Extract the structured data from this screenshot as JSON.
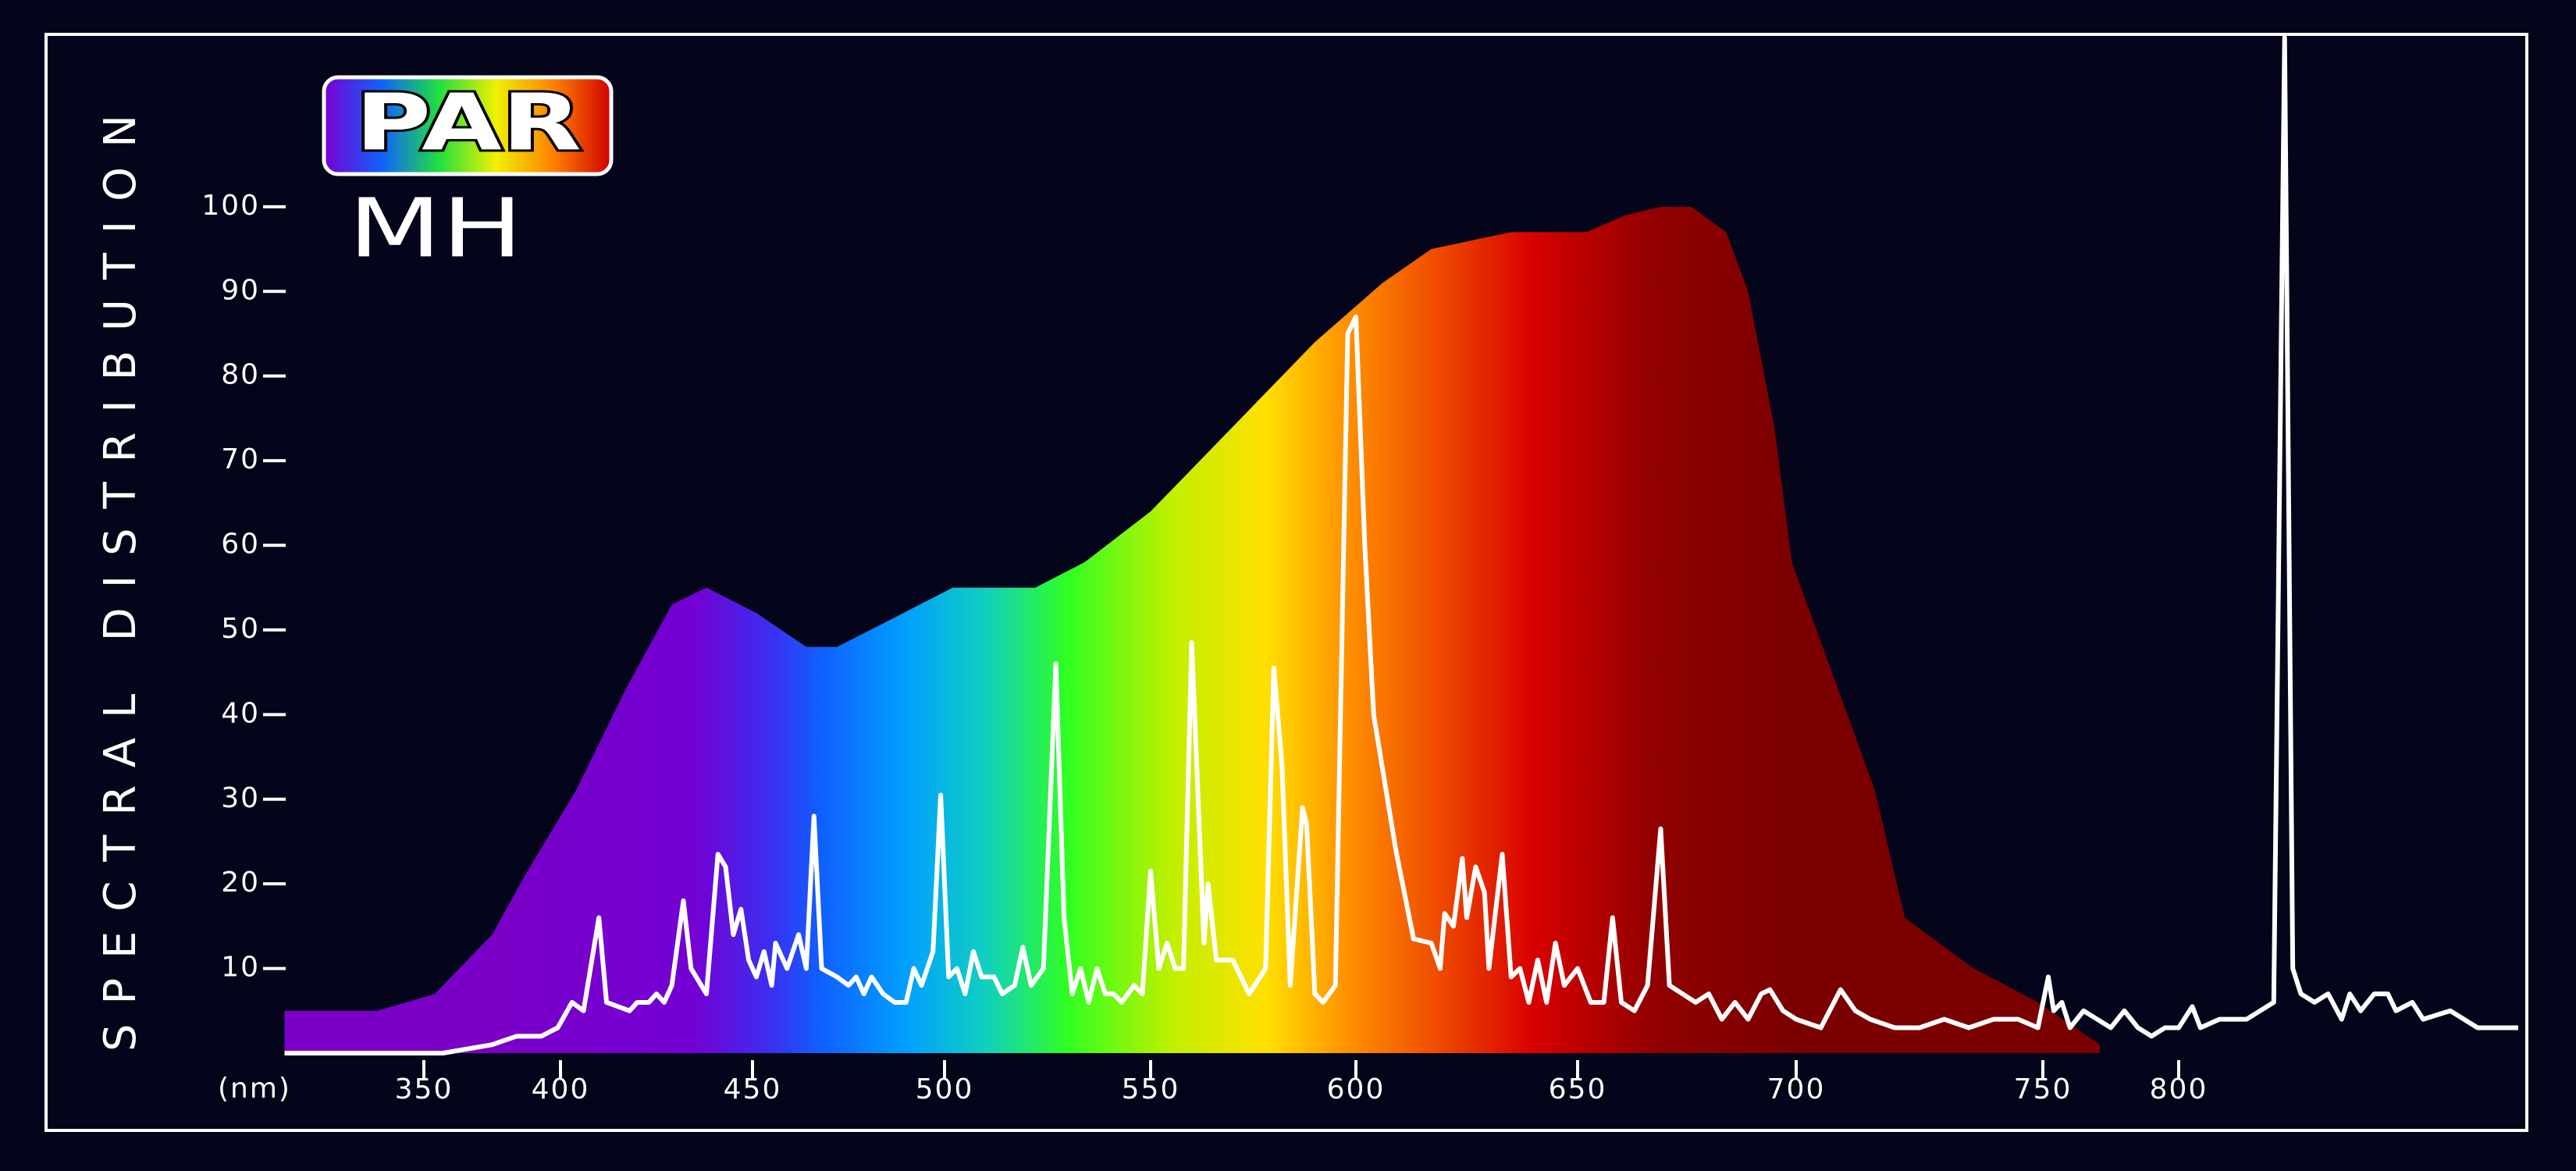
{
  "chart_data": {
    "type": "line",
    "badge": "PAR",
    "title": "MH",
    "ylabel": "SPECTRAL DISTRIBUTION",
    "xlabel": "(nm)",
    "xlim": [
      299,
      925
    ],
    "xticks": [
      350,
      400,
      450,
      500,
      550,
      600,
      650,
      700,
      750,
      800
    ],
    "ylim": [
      0,
      120
    ],
    "yticks": [
      10,
      20,
      30,
      40,
      50,
      60,
      70,
      80,
      90,
      100
    ],
    "series": [
      {
        "type": "area",
        "gradient": [
          {
            "x": 380,
            "color": "#7a00c8"
          },
          {
            "x": 435,
            "color": "#7400d4"
          },
          {
            "x": 455,
            "color": "#3a30f0"
          },
          {
            "x": 468,
            "color": "#1060ff"
          },
          {
            "x": 490,
            "color": "#00a0ff"
          },
          {
            "x": 510,
            "color": "#10d0c0"
          },
          {
            "x": 530,
            "color": "#30ff20"
          },
          {
            "x": 555,
            "color": "#c0f000"
          },
          {
            "x": 578,
            "color": "#ffe000"
          },
          {
            "x": 598,
            "color": "#ff9000"
          },
          {
            "x": 617,
            "color": "#f05000"
          },
          {
            "x": 640,
            "color": "#d80000"
          },
          {
            "x": 668,
            "color": "#900000"
          },
          {
            "x": 700,
            "color": "#7a0000"
          }
        ],
        "x": [
          299,
          333,
          354,
          375,
          387,
          404,
          417,
          429,
          438,
          451,
          464,
          472,
          485,
          502,
          510,
          522,
          534,
          550,
          570,
          590,
          606,
          617,
          635,
          652,
          661,
          669,
          676,
          684,
          689,
          695,
          699,
          706,
          716,
          722,
          736,
          749,
          771
        ],
        "values": [
          5,
          5,
          7,
          14,
          21,
          31,
          43,
          53,
          55,
          52,
          48,
          48,
          51,
          55,
          55,
          55,
          58,
          64,
          74,
          84,
          91,
          95,
          97,
          97,
          99,
          100,
          100,
          97,
          90,
          74,
          58,
          47,
          31,
          16,
          10,
          6,
          1
        ]
      },
      {
        "type": "line",
        "color": "#ffffff",
        "x": [
          299,
          357,
          375,
          384,
          393,
          399,
          403,
          406,
          410,
          412,
          418,
          420,
          423,
          425,
          427,
          429,
          432,
          434,
          438,
          441,
          443,
          445,
          447,
          449,
          451,
          453,
          455,
          456,
          459,
          462,
          464,
          466,
          468,
          472,
          475,
          477,
          479,
          481,
          484,
          487,
          490,
          492,
          494,
          497,
          499,
          501,
          503,
          505,
          507,
          509,
          512,
          514,
          517,
          519,
          521,
          524,
          527,
          529,
          531,
          533,
          535,
          537,
          539,
          541,
          543,
          546,
          548,
          550,
          552,
          554,
          556,
          558,
          560,
          562,
          563,
          564,
          566,
          570,
          574,
          578,
          580,
          582,
          584,
          587,
          588,
          590,
          592,
          595,
          598,
          600,
          602,
          604,
          609,
          613,
          617,
          619,
          620,
          622,
          624,
          625,
          627,
          629,
          630,
          633,
          635,
          637,
          639,
          641,
          643,
          645,
          647,
          650,
          653,
          656,
          658,
          660,
          663,
          666,
          669,
          671,
          674,
          677,
          680,
          683,
          686,
          689,
          692,
          694,
          697,
          700,
          705,
          709,
          712,
          715,
          720,
          725,
          730,
          735,
          740,
          745,
          749,
          752,
          754,
          757,
          760,
          765,
          770,
          775,
          780,
          785,
          790,
          795,
          800,
          805,
          808,
          815,
          825,
          835,
          839,
          842,
          845,
          850,
          855,
          860,
          863,
          867,
          872,
          877,
          880,
          886,
          890,
          900,
          910,
          920,
          925
        ],
        "values": [
          0,
          0,
          1,
          2,
          2,
          3,
          6,
          5,
          16,
          6,
          5,
          6,
          6,
          7,
          6,
          8,
          18,
          10,
          7,
          23.5,
          22,
          14,
          17,
          11,
          9,
          12,
          8,
          13,
          10,
          14,
          10,
          28,
          10,
          9,
          8,
          9,
          7,
          9,
          7,
          6,
          6,
          10,
          8,
          12,
          30.5,
          9,
          10,
          7,
          12,
          9,
          9,
          7,
          8,
          12.5,
          8,
          10,
          46,
          16,
          7,
          10,
          6,
          10,
          7,
          7,
          6,
          8,
          7,
          21.5,
          10,
          13,
          10,
          10,
          48.5,
          25,
          13,
          20,
          11,
          11,
          7,
          10,
          45.5,
          34,
          8,
          29,
          27,
          7,
          6,
          8,
          85,
          87,
          60,
          40,
          24,
          13.5,
          13,
          10,
          16.5,
          15,
          23,
          16,
          22,
          19,
          10,
          23.5,
          9,
          10,
          6,
          11,
          6,
          13,
          8,
          10,
          6,
          6,
          16,
          6,
          5,
          8,
          26.5,
          8,
          7,
          6,
          7,
          4,
          6,
          4,
          7,
          7.5,
          5,
          4,
          3,
          7.5,
          5,
          4,
          3,
          3,
          4,
          3,
          4,
          4,
          3,
          9,
          5,
          6,
          3,
          5,
          4,
          3,
          5,
          3,
          2,
          3,
          3,
          5.5,
          3,
          4,
          4,
          6,
          120,
          10,
          7,
          6,
          7,
          4,
          7,
          5,
          7,
          7,
          5,
          6,
          4,
          5,
          3,
          3,
          3
        ]
      }
    ]
  }
}
